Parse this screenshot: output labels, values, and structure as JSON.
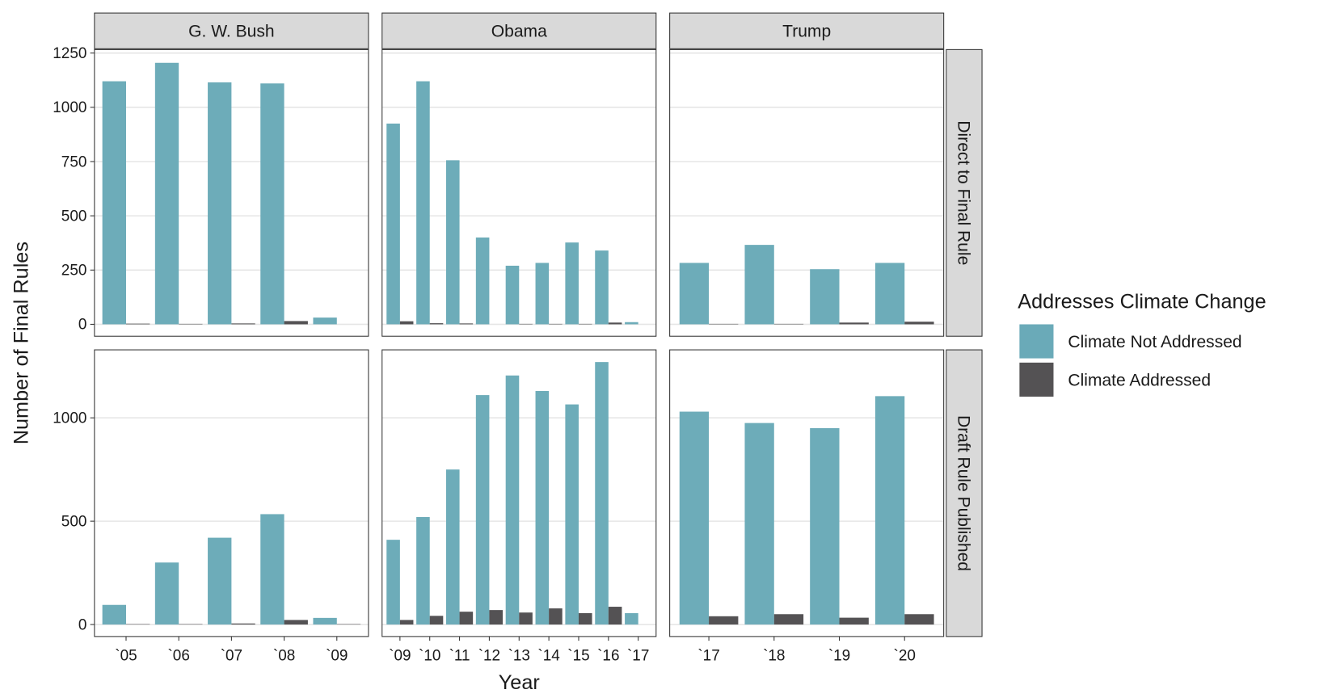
{
  "chart_data": {
    "type": "bar",
    "xlabel": "Year",
    "ylabel": "Number of Final Rules",
    "legend_title": "Addresses Climate Change",
    "series": [
      {
        "name": "Climate Not Addressed",
        "color": "#6aaab8"
      },
      {
        "name": "Climate Addressed",
        "color": "#545254"
      }
    ],
    "grid": true,
    "columns": [
      {
        "label": "G. W. Bush",
        "categories": [
          "`05",
          "`06",
          "`07",
          "`08",
          "`09"
        ]
      },
      {
        "label": "Obama",
        "categories": [
          "`09",
          "`10",
          "`11",
          "`12",
          "`13",
          "`14",
          "`15",
          "`16",
          "`17"
        ]
      },
      {
        "label": "Trump",
        "categories": [
          "`17",
          "`18",
          "`19",
          "`20"
        ]
      }
    ],
    "rows": [
      {
        "label": "Direct to Final Rule",
        "ylim": [
          -55,
          1266
        ],
        "yticks": [
          0,
          250,
          500,
          750,
          1000,
          1250
        ],
        "panels": [
          {
            "series": [
              {
                "values": [
                  1120,
                  1205,
                  1115,
                  1110,
                  31
                ]
              },
              {
                "values": [
                  3,
                  2,
                  4,
                  15,
                  0
                ]
              }
            ]
          },
          {
            "series": [
              {
                "values": [
                  925,
                  1120,
                  756,
                  400,
                  270,
                  283,
                  377,
                  340,
                  10
                ]
              },
              {
                "values": [
                  14,
                  5,
                  4,
                  0,
                  2,
                  2,
                  2,
                  8,
                  0
                ]
              }
            ]
          },
          {
            "series": [
              {
                "values": [
                  283,
                  366,
                  254,
                  283
                ]
              },
              {
                "values": [
                  2,
                  2,
                  8,
                  12
                ]
              }
            ]
          }
        ]
      },
      {
        "label": "Draft Rule Published",
        "ylim": [
          -58,
          1329
        ],
        "yticks": [
          0,
          500,
          1000
        ],
        "panels": [
          {
            "series": [
              {
                "values": [
                  95,
                  300,
                  420,
                  534,
                  32
                ]
              },
              {
                "values": [
                  2,
                  2,
                  5,
                  22,
                  2
                ]
              }
            ]
          },
          {
            "series": [
              {
                "values": [
                  410,
                  520,
                  750,
                  1110,
                  1205,
                  1130,
                  1065,
                  1270,
                  55
                ]
              },
              {
                "values": [
                  22,
                  42,
                  62,
                  70,
                  58,
                  78,
                  55,
                  86,
                  0
                ]
              }
            ]
          },
          {
            "series": [
              {
                "values": [
                  1030,
                  975,
                  950,
                  1105
                ]
              },
              {
                "values": [
                  40,
                  50,
                  33,
                  50
                ]
              }
            ]
          }
        ]
      }
    ]
  }
}
